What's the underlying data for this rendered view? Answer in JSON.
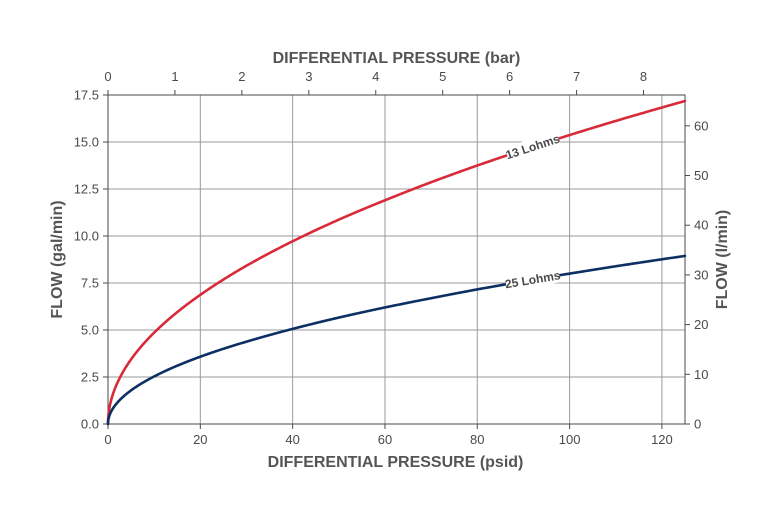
{
  "chart_data": {
    "type": "line",
    "x_top_label": "DIFFERENTIAL PRESSURE (bar)",
    "x_bottom_label": "DIFFERENTIAL PRESSURE (psid)",
    "y_left_label": "FLOW (gal/min)",
    "y_right_label": "FLOW (l/min)",
    "x_bottom_range": [
      0,
      125
    ],
    "x_bottom_ticks": [
      "0",
      "20",
      "40",
      "60",
      "80",
      "100",
      "120"
    ],
    "x_top_range": [
      0,
      8.62
    ],
    "x_top_ticks": [
      "0",
      "1",
      "2",
      "3",
      "4",
      "5",
      "6",
      "7",
      "8"
    ],
    "y_left_range": [
      0,
      17.5
    ],
    "y_left_ticks": [
      "0.0",
      "2.5",
      "5.0",
      "7.5",
      "10.0",
      "12.5",
      "15.0",
      "17.5"
    ],
    "y_right_range": [
      0,
      66.2
    ],
    "y_right_ticks": [
      "0",
      "10",
      "20",
      "30",
      "40",
      "50",
      "60"
    ],
    "grid": true,
    "series": [
      {
        "name": "13 Lohms",
        "color": "#d92a3a",
        "x": [
          0,
          1,
          2,
          5,
          10,
          20,
          30,
          40,
          50,
          60,
          70,
          80,
          90,
          100,
          110,
          125
        ],
        "y": [
          0,
          1.54,
          2.17,
          3.44,
          4.86,
          6.87,
          8.42,
          9.72,
          10.87,
          11.9,
          12.86,
          13.75,
          14.58,
          15.37,
          16.12,
          17.18
        ]
      },
      {
        "name": "25 Lohms",
        "color": "#0d2f63",
        "x": [
          0,
          1,
          2,
          5,
          10,
          20,
          30,
          40,
          50,
          60,
          70,
          80,
          90,
          100,
          110,
          125
        ],
        "y": [
          0,
          0.8,
          1.13,
          1.79,
          2.53,
          3.58,
          4.38,
          5.06,
          5.66,
          6.2,
          6.69,
          7.16,
          7.59,
          8.0,
          8.39,
          8.94
        ]
      }
    ]
  }
}
